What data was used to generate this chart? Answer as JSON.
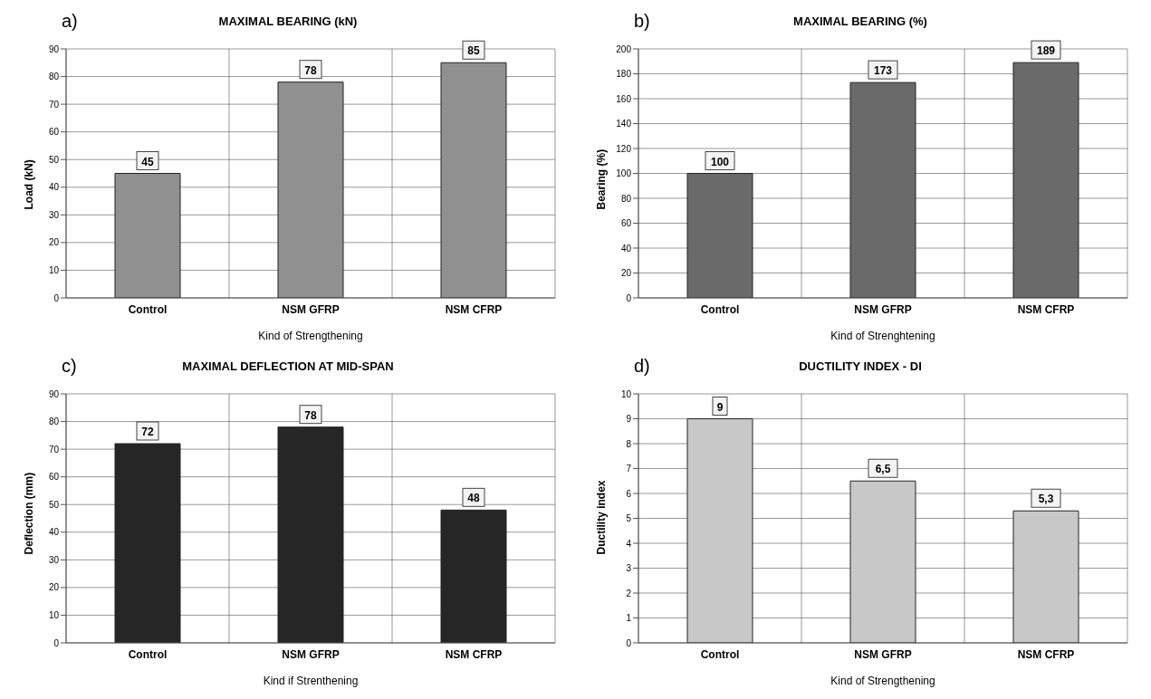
{
  "chart_data": [
    {
      "type": "bar",
      "title": "MAXIMAL BEARING (kN)",
      "annotations": [
        "a)"
      ],
      "categories": [
        "Control",
        "NSM GFRP",
        "NSM CFRP"
      ],
      "values": [
        45,
        78,
        85
      ],
      "color": "#909090",
      "ylim": [
        0,
        90
      ],
      "yticks": [
        0,
        10,
        20,
        30,
        40,
        50,
        60,
        70,
        80,
        90
      ],
      "xlabel": "Kind of Strengthening",
      "ylabel": "Load (kN)",
      "grid": true,
      "data_labels": true
    },
    {
      "type": "bar",
      "title": "MAXIMAL BEARING (%)",
      "annotations": [
        "b)"
      ],
      "categories": [
        "Control",
        "NSM GFRP",
        "NSM CFRP"
      ],
      "values": [
        100,
        173,
        189
      ],
      "color": "#6a6a6a",
      "ylim": [
        0,
        200
      ],
      "yticks": [
        0,
        20,
        40,
        60,
        80,
        100,
        120,
        140,
        160,
        180,
        200
      ],
      "xlabel": "Kind of Strenghtening",
      "ylabel": "Bearing (%)",
      "grid": true,
      "data_labels": true
    },
    {
      "type": "bar",
      "title": "MAXIMAL DEFLECTION AT MID-SPAN",
      "annotations": [
        "c)"
      ],
      "categories": [
        "Control",
        "NSM GFRP",
        "NSM CFRP"
      ],
      "values": [
        72,
        78,
        48
      ],
      "color": "#262626",
      "ylim": [
        0,
        90
      ],
      "yticks": [
        0,
        10,
        20,
        30,
        40,
        50,
        60,
        70,
        80,
        90
      ],
      "xlabel": "Kind if Strenthening",
      "ylabel": "Deflection (mm)",
      "grid": true,
      "data_labels": true
    },
    {
      "type": "bar",
      "title": "DUCTILITY INDEX - DI",
      "annotations": [
        "d)"
      ],
      "categories": [
        "Control",
        "NSM GFRP",
        "NSM CFRP"
      ],
      "values": [
        9,
        6.5,
        5.3
      ],
      "value_labels": [
        "9",
        "6,5",
        "5,3"
      ],
      "color": "#c8c8c8",
      "ylim": [
        0,
        10
      ],
      "yticks": [
        0,
        1,
        2,
        3,
        4,
        5,
        6,
        7,
        8,
        9,
        10
      ],
      "xlabel": "Kind of Strengthening",
      "ylabel": "Ductility index",
      "grid": true
    }
  ]
}
